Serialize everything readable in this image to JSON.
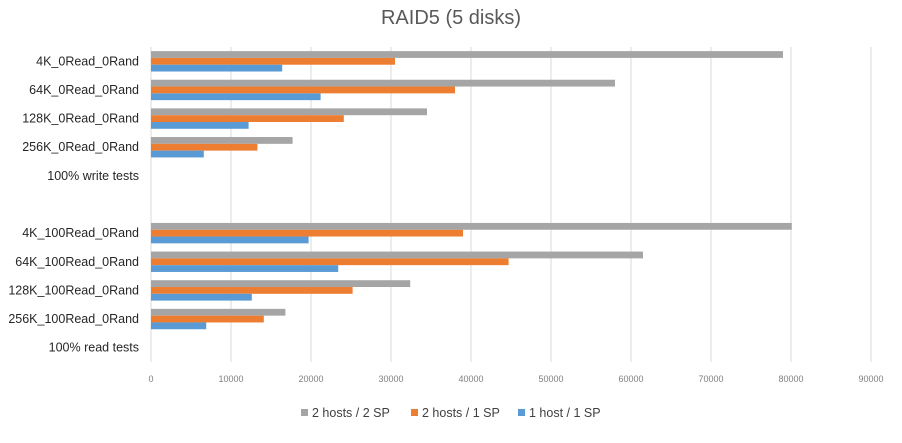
{
  "chart_data": {
    "type": "bar",
    "orientation": "horizontal",
    "title": "RAID5 (5 disks)",
    "xlabel": "",
    "ylabel": "",
    "xlim": [
      0,
      90000
    ],
    "tick_step": 10000,
    "tick_labels": [
      "0",
      "10000",
      "20000",
      "30000",
      "40000",
      "50000",
      "60000",
      "70000",
      "80000",
      "90000"
    ],
    "grid": true,
    "legend_position": "bottom",
    "categories": [
      "4K_0Read_0Rand",
      "64K_0Read_0Rand",
      "128K_0Read_0Rand",
      "256K_0Read_0Rand",
      "100% write tests",
      "",
      "4K_100Read_0Rand",
      "64K_100Read_0Rand",
      "128K_100Read_0Rand",
      "256K_100Read_0Rand",
      "100% read tests"
    ],
    "series": [
      {
        "name": "2 hosts / 2 SP",
        "color": "#a5a5a5",
        "values": [
          79000,
          58000,
          34500,
          17700,
          null,
          null,
          80100,
          61500,
          32400,
          16800,
          null
        ]
      },
      {
        "name": "2 hosts / 1 SP",
        "color": "#ed7d31",
        "values": [
          30500,
          38000,
          24100,
          13300,
          null,
          null,
          39000,
          44700,
          25200,
          14100,
          null
        ]
      },
      {
        "name": "1 host / 1 SP",
        "color": "#5b9bd5",
        "values": [
          16400,
          21200,
          12200,
          6600,
          null,
          null,
          19700,
          23400,
          12600,
          6900,
          null
        ]
      }
    ]
  }
}
